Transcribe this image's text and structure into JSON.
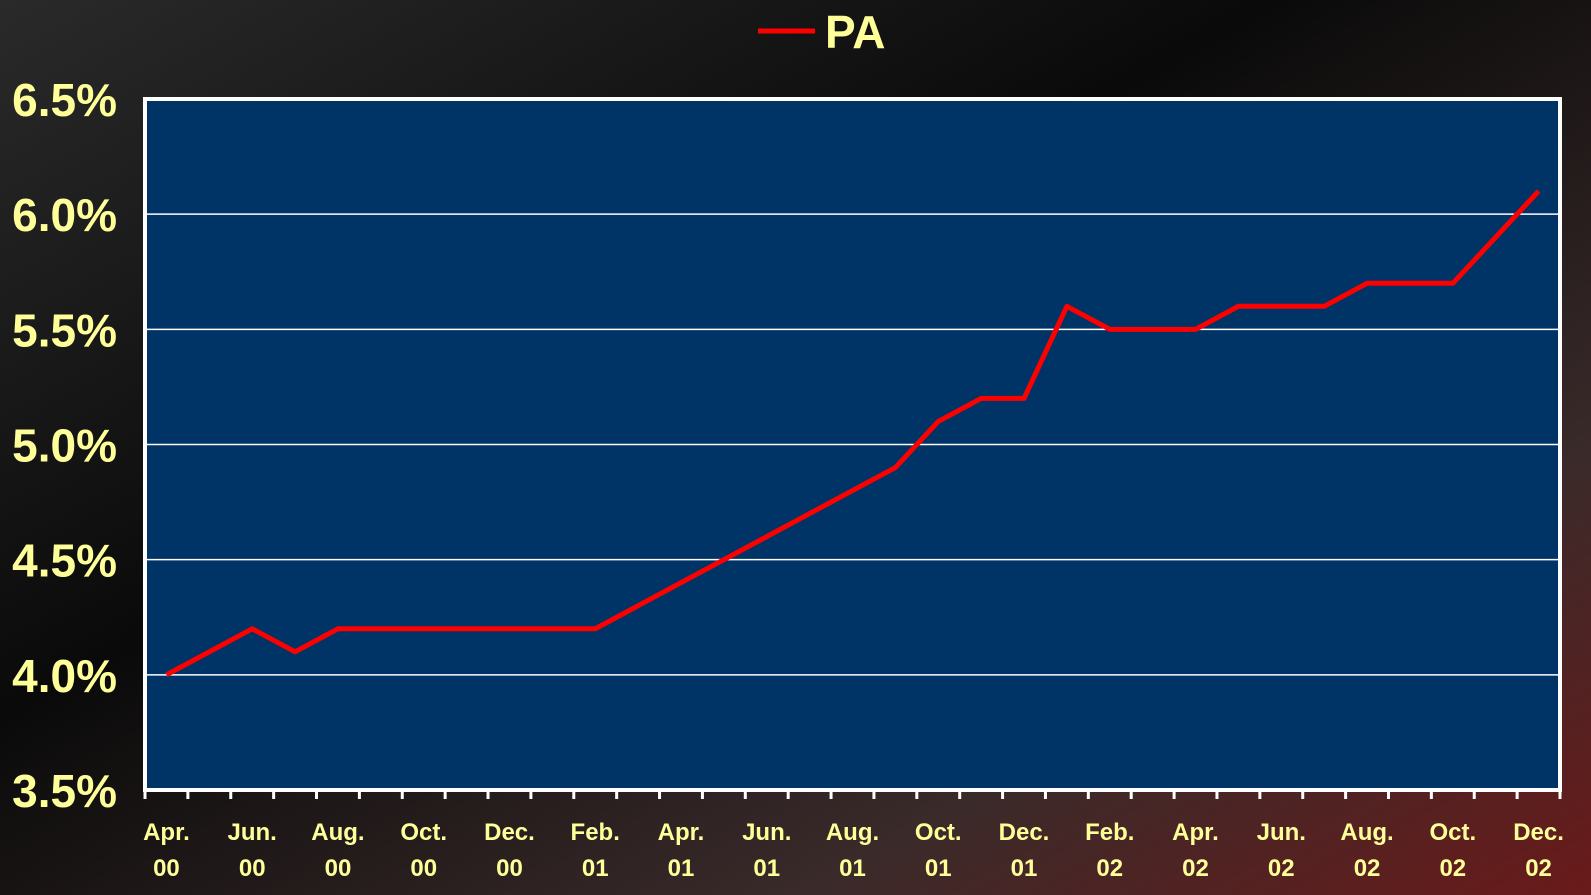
{
  "chart_data": {
    "type": "line",
    "categories": [
      "Apr. 00",
      null,
      "Jun. 00",
      null,
      "Aug. 00",
      null,
      "Oct. 00",
      null,
      "Dec. 00",
      null,
      "Feb. 01",
      null,
      "Apr. 01",
      null,
      "Jun. 01",
      null,
      "Aug. 01",
      null,
      "Oct. 01",
      null,
      "Dec. 01",
      null,
      "Feb. 02",
      null,
      "Apr. 02",
      null,
      "Jun. 02",
      null,
      "Aug. 02",
      null,
      "Oct. 02",
      null,
      "Dec. 02"
    ],
    "series": [
      {
        "name": "PA",
        "color": "#ff0000",
        "values": [
          4.0,
          4.1,
          4.2,
          4.1,
          4.2,
          4.2,
          4.2,
          4.2,
          4.2,
          4.2,
          4.2,
          4.3,
          4.4,
          4.5,
          4.6,
          4.7,
          4.8,
          4.9,
          5.1,
          5.2,
          5.2,
          5.6,
          5.5,
          5.5,
          5.5,
          5.6,
          5.6,
          5.6,
          5.7,
          5.7,
          5.7,
          5.9,
          6.1
        ]
      }
    ],
    "ylim": [
      3.5,
      6.5
    ],
    "yticks": [
      {
        "value": 3.5,
        "label": "3.5%"
      },
      {
        "value": 4.0,
        "label": "4.0%"
      },
      {
        "value": 4.5,
        "label": "4.5%"
      },
      {
        "value": 5.0,
        "label": "5.0%"
      },
      {
        "value": 5.5,
        "label": "5.5%"
      },
      {
        "value": 6.0,
        "label": "6.0%"
      },
      {
        "value": 6.5,
        "label": "6.5%"
      }
    ],
    "grid": true,
    "plot_color": "#003366",
    "legend": "top"
  }
}
